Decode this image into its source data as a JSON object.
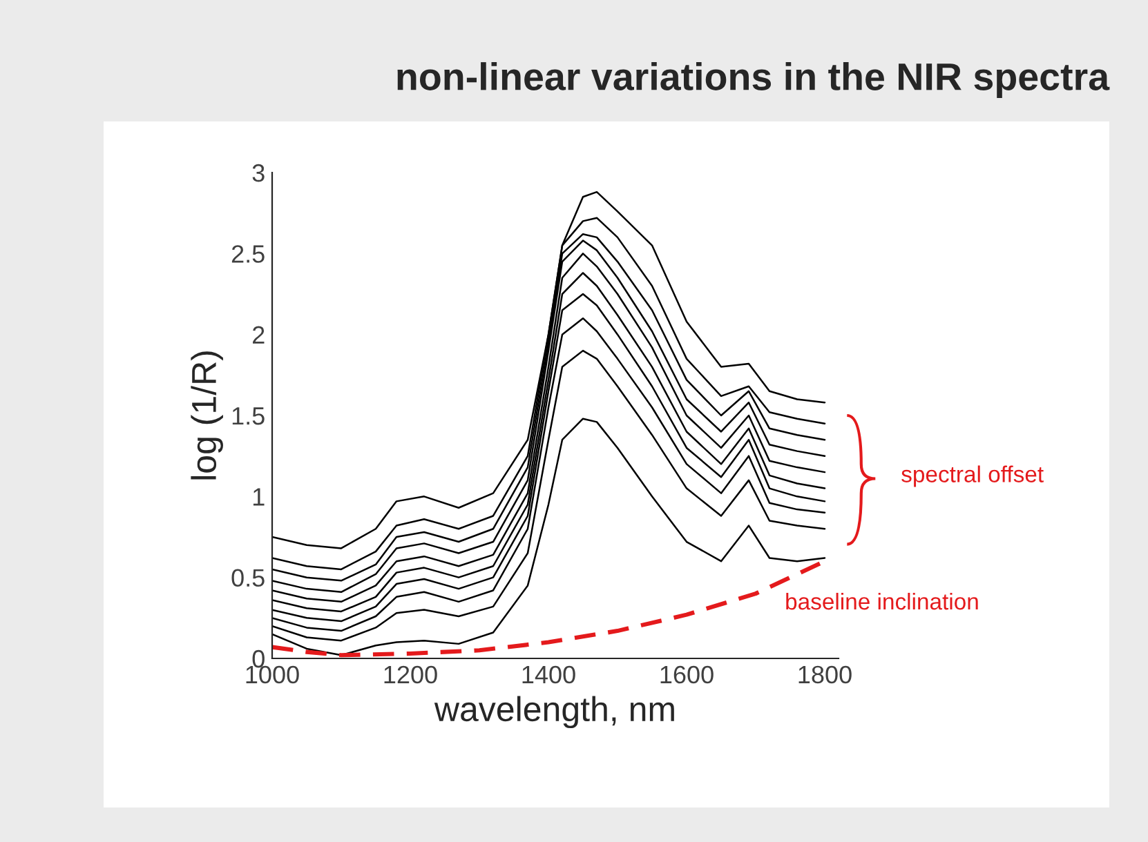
{
  "chart_data": {
    "type": "line",
    "title": "non-linear variations in the NIR spectra",
    "xlabel": "wavelength, nm",
    "ylabel": "log (1/R)",
    "x": [
      1000,
      1050,
      1100,
      1150,
      1180,
      1220,
      1270,
      1320,
      1370,
      1400,
      1420,
      1450,
      1470,
      1500,
      1550,
      1600,
      1650,
      1690,
      1720,
      1760,
      1800
    ],
    "series": [
      {
        "color": "#000000",
        "values": [
          0.75,
          0.7,
          0.68,
          0.8,
          0.97,
          1.0,
          0.93,
          1.02,
          1.35,
          2.0,
          2.55,
          2.85,
          2.88,
          2.76,
          2.55,
          2.08,
          1.8,
          1.82,
          1.65,
          1.6,
          1.58
        ]
      },
      {
        "color": "#000000",
        "values": [
          0.62,
          0.57,
          0.55,
          0.66,
          0.82,
          0.86,
          0.8,
          0.88,
          1.25,
          2.0,
          2.55,
          2.7,
          2.72,
          2.6,
          2.3,
          1.85,
          1.62,
          1.68,
          1.52,
          1.48,
          1.45
        ]
      },
      {
        "color": "#000000",
        "values": [
          0.55,
          0.5,
          0.48,
          0.58,
          0.75,
          0.78,
          0.72,
          0.8,
          1.18,
          1.95,
          2.5,
          2.62,
          2.6,
          2.45,
          2.15,
          1.72,
          1.5,
          1.65,
          1.42,
          1.38,
          1.35
        ]
      },
      {
        "color": "#000000",
        "values": [
          0.48,
          0.43,
          0.41,
          0.52,
          0.68,
          0.71,
          0.65,
          0.72,
          1.1,
          1.9,
          2.45,
          2.58,
          2.52,
          2.35,
          2.02,
          1.6,
          1.4,
          1.58,
          1.32,
          1.28,
          1.25
        ]
      },
      {
        "color": "#000000",
        "values": [
          0.42,
          0.37,
          0.35,
          0.45,
          0.6,
          0.63,
          0.57,
          0.64,
          1.02,
          1.8,
          2.35,
          2.5,
          2.42,
          2.25,
          1.92,
          1.5,
          1.3,
          1.5,
          1.22,
          1.18,
          1.15
        ]
      },
      {
        "color": "#000000",
        "values": [
          0.36,
          0.31,
          0.29,
          0.38,
          0.53,
          0.56,
          0.5,
          0.57,
          0.95,
          1.72,
          2.25,
          2.38,
          2.3,
          2.12,
          1.8,
          1.4,
          1.2,
          1.42,
          1.13,
          1.08,
          1.05
        ]
      },
      {
        "color": "#000000",
        "values": [
          0.3,
          0.25,
          0.23,
          0.32,
          0.46,
          0.49,
          0.43,
          0.5,
          0.88,
          1.65,
          2.15,
          2.25,
          2.18,
          2.0,
          1.68,
          1.3,
          1.12,
          1.35,
          1.05,
          1.0,
          0.97
        ]
      },
      {
        "color": "#000000",
        "values": [
          0.25,
          0.19,
          0.17,
          0.26,
          0.38,
          0.41,
          0.35,
          0.42,
          0.8,
          1.55,
          2.0,
          2.1,
          2.02,
          1.85,
          1.55,
          1.2,
          1.02,
          1.25,
          0.96,
          0.92,
          0.9
        ]
      },
      {
        "color": "#000000",
        "values": [
          0.2,
          0.13,
          0.11,
          0.19,
          0.28,
          0.3,
          0.26,
          0.32,
          0.65,
          1.35,
          1.8,
          1.9,
          1.85,
          1.68,
          1.38,
          1.05,
          0.88,
          1.1,
          0.85,
          0.82,
          0.8
        ]
      },
      {
        "color": "#000000",
        "values": [
          0.15,
          0.06,
          0.02,
          0.08,
          0.1,
          0.11,
          0.09,
          0.16,
          0.45,
          0.95,
          1.35,
          1.48,
          1.46,
          1.3,
          1.0,
          0.72,
          0.6,
          0.82,
          0.62,
          0.6,
          0.62
        ]
      },
      {
        "color": "#e41a1c",
        "line_style": "dashed",
        "x": [
          1000,
          1050,
          1100,
          1200,
          1300,
          1400,
          1500,
          1600,
          1700,
          1800
        ],
        "values": [
          0.07,
          0.04,
          0.02,
          0.03,
          0.05,
          0.1,
          0.17,
          0.27,
          0.4,
          0.6
        ]
      }
    ],
    "annotations": [
      "spectral offset",
      "baseline inclination"
    ],
    "xlim": [
      1000,
      1820
    ],
    "xticks": [
      1000,
      1200,
      1400,
      1600,
      1800
    ],
    "ylim": [
      0,
      3
    ],
    "yticks": [
      0,
      0.5,
      1,
      1.5,
      2,
      2.5,
      3
    ],
    "grid": false,
    "marker": "none",
    "line_style": "solid"
  }
}
